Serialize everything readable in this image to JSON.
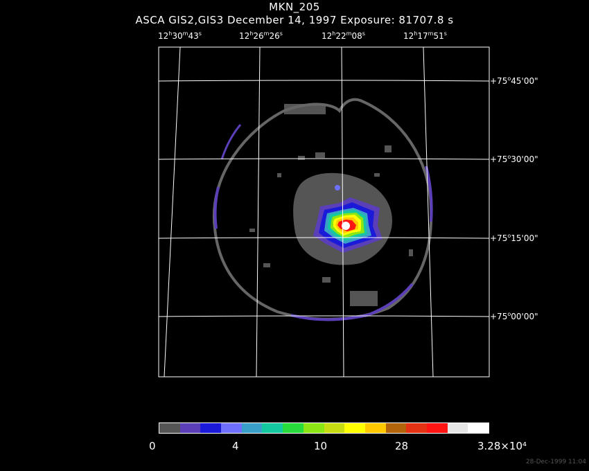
{
  "header": {
    "object": "MKN_205",
    "subtitle": "ASCA GIS2,GIS3 December 14, 1997 Exposure: 81707.8 s"
  },
  "ra_labels": [
    {
      "h": "12",
      "m": "30",
      "s": "43"
    },
    {
      "h": "12",
      "m": "26",
      "s": "26"
    },
    {
      "h": "12",
      "m": "22",
      "s": "08"
    },
    {
      "h": "12",
      "m": "17",
      "s": "51"
    }
  ],
  "dec_labels": [
    {
      "d": "+75",
      "m": "45",
      "s": "00"
    },
    {
      "d": "+75",
      "m": "30",
      "s": "00"
    },
    {
      "d": "+75",
      "m": "15",
      "s": "00"
    },
    {
      "d": "+75",
      "m": "00",
      "s": "00"
    }
  ],
  "colorbar": {
    "colors": [
      "#555555",
      "#5a3fb8",
      "#1a1ad8",
      "#7070ff",
      "#3aa0c8",
      "#14c8a0",
      "#28dc3c",
      "#8ce614",
      "#c8dc14",
      "#ffff00",
      "#ffc800",
      "#b4640a",
      "#e63214",
      "#ff1414",
      "#e6e6e6",
      "#ffffff"
    ],
    "ticks": [
      "0",
      "4",
      "10",
      "28",
      "3.28×10⁴"
    ]
  },
  "stamp": "28-Dec-1999 11:04"
}
